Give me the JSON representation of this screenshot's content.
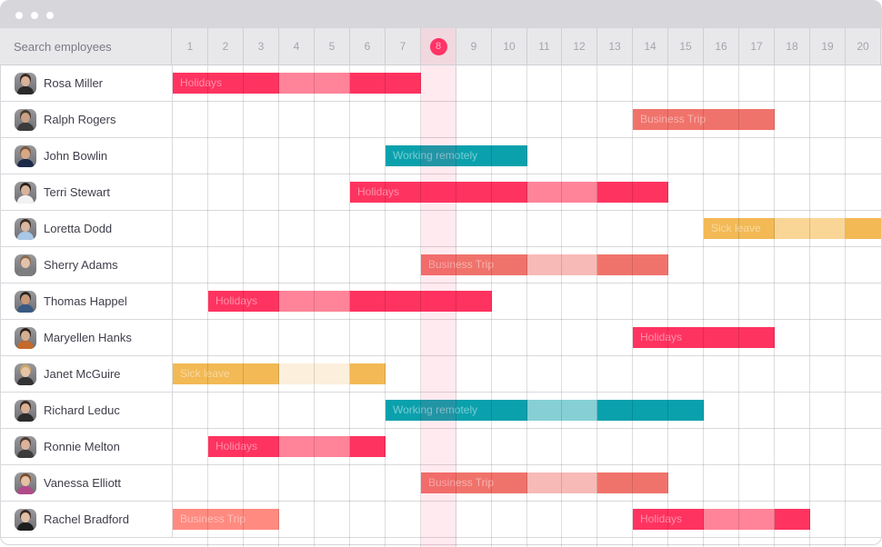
{
  "window": {
    "controls": [
      "dot",
      "dot",
      "dot"
    ]
  },
  "header": {
    "search_placeholder": "Search employees",
    "days": [
      "1",
      "2",
      "3",
      "4",
      "5",
      "6",
      "7",
      "8",
      "9",
      "10",
      "11",
      "12",
      "13",
      "14",
      "15",
      "16",
      "17",
      "18",
      "19",
      "20"
    ],
    "today": "8"
  },
  "colors": {
    "holidays": "#ff3360",
    "holidays_light": "#ff8399",
    "business": "#f0736b",
    "business_light": "#f8bab6",
    "business_salmon": "#ff8a80",
    "remote": "#0aa1ad",
    "remote_light": "#85cfd5",
    "sick": "#f2b955",
    "sick_light": "#f9d596",
    "sick_pale": "#fcefdc",
    "today_accent": "#ff3366"
  },
  "employees": [
    {
      "name": "Rosa Miller",
      "avatar": {
        "hair": "#3b2a22",
        "skin": "#d7b39a",
        "shirt": "#2a2a2a"
      },
      "bars": [
        {
          "label": "Holidays",
          "start": 1,
          "segments": [
            {
              "days": 3,
              "tone": "holidays"
            },
            {
              "days": 2,
              "tone": "holidays_light"
            },
            {
              "days": 2,
              "tone": "holidays"
            }
          ]
        }
      ]
    },
    {
      "name": "Ralph Rogers",
      "avatar": {
        "hair": "#4a3a2e",
        "skin": "#caa088",
        "shirt": "#3b3b3b"
      },
      "bars": [
        {
          "label": "Business Trip",
          "start": 14,
          "segments": [
            {
              "days": 4,
              "tone": "business"
            }
          ]
        }
      ]
    },
    {
      "name": "John Bowlin",
      "avatar": {
        "hair": "#7a5a3e",
        "skin": "#d8a886",
        "shirt": "#1c2a48"
      },
      "bars": [
        {
          "label": "Working remotely",
          "start": 7,
          "segments": [
            {
              "days": 4,
              "tone": "remote"
            }
          ]
        }
      ]
    },
    {
      "name": "Terri Stewart",
      "avatar": {
        "hair": "#2b2019",
        "skin": "#d6b49c",
        "shirt": "#f2f2f2"
      },
      "bars": [
        {
          "label": "Holidays",
          "start": 6,
          "segments": [
            {
              "days": 5,
              "tone": "holidays"
            },
            {
              "days": 2,
              "tone": "holidays_light"
            },
            {
              "days": 2,
              "tone": "holidays"
            }
          ]
        }
      ]
    },
    {
      "name": "Loretta Dodd",
      "avatar": {
        "hair": "#3a2b22",
        "skin": "#d9b7a0",
        "shirt": "#a9c7e6"
      },
      "bars": [
        {
          "label": "Sick leave",
          "start": 16,
          "segments": [
            {
              "days": 2,
              "tone": "sick"
            },
            {
              "days": 2,
              "tone": "sick_light"
            },
            {
              "days": 1,
              "tone": "sick"
            }
          ]
        }
      ]
    },
    {
      "name": "Sherry Adams",
      "avatar": {
        "hair": "#8a6a4e",
        "skin": "#e3c2aa",
        "shirt": "#7d7d80"
      },
      "bars": [
        {
          "label": "Business Trip",
          "start": 8,
          "segments": [
            {
              "days": 3,
              "tone": "business"
            },
            {
              "days": 2,
              "tone": "business_light"
            },
            {
              "days": 2,
              "tone": "business"
            }
          ]
        }
      ]
    },
    {
      "name": "Thomas Happel",
      "avatar": {
        "hair": "#2a2520",
        "skin": "#c99a7a",
        "shirt": "#3a5a82"
      },
      "bars": [
        {
          "label": "Holidays",
          "start": 2,
          "segments": [
            {
              "days": 2,
              "tone": "holidays"
            },
            {
              "days": 2,
              "tone": "holidays_light"
            },
            {
              "days": 4,
              "tone": "holidays"
            }
          ]
        }
      ]
    },
    {
      "name": "Maryellen Hanks",
      "avatar": {
        "hair": "#2a1e18",
        "skin": "#d6ae92",
        "shirt": "#c46a2c"
      },
      "bars": [
        {
          "label": "Holidays",
          "start": 14,
          "segments": [
            {
              "days": 4,
              "tone": "holidays"
            }
          ]
        }
      ]
    },
    {
      "name": "Janet McGuire",
      "avatar": {
        "hair": "#c9a66b",
        "skin": "#e8c4a6",
        "shirt": "#333333"
      },
      "bars": [
        {
          "label": "Sick leave",
          "start": 1,
          "segments": [
            {
              "days": 3,
              "tone": "sick"
            },
            {
              "days": 2,
              "tone": "sick_pale"
            },
            {
              "days": 1,
              "tone": "sick"
            }
          ]
        }
      ]
    },
    {
      "name": "Richard Leduc",
      "avatar": {
        "hair": "#3a2a20",
        "skin": "#d9b196",
        "shirt": "#2c2c2c"
      },
      "bars": [
        {
          "label": "Working remotely",
          "start": 7,
          "segments": [
            {
              "days": 4,
              "tone": "remote"
            },
            {
              "days": 2,
              "tone": "remote_light"
            },
            {
              "days": 3,
              "tone": "remote"
            }
          ]
        }
      ]
    },
    {
      "name": "Ronnie Melton",
      "avatar": {
        "hair": "#4e3a2c",
        "skin": "#dcb39a",
        "shirt": "#3b3b3b"
      },
      "bars": [
        {
          "label": "Holidays",
          "start": 2,
          "segments": [
            {
              "days": 2,
              "tone": "holidays"
            },
            {
              "days": 2,
              "tone": "holidays_light"
            },
            {
              "days": 1,
              "tone": "holidays"
            }
          ]
        }
      ]
    },
    {
      "name": "Vanessa Elliott",
      "avatar": {
        "hair": "#7a4e2e",
        "skin": "#e6c0a4",
        "shirt": "#b04a8a"
      },
      "bars": [
        {
          "label": "Business Trip",
          "start": 8,
          "segments": [
            {
              "days": 3,
              "tone": "business"
            },
            {
              "days": 2,
              "tone": "business_light"
            },
            {
              "days": 2,
              "tone": "business"
            }
          ]
        }
      ]
    },
    {
      "name": "Rachel Bradford",
      "avatar": {
        "hair": "#3a2a22",
        "skin": "#e2c0a8",
        "shirt": "#1e1e1e"
      },
      "bars": [
        {
          "label": "Business Trip",
          "start": 1,
          "segments": [
            {
              "days": 3,
              "tone": "business_salmon"
            }
          ]
        },
        {
          "label": "Holidays",
          "start": 14,
          "segments": [
            {
              "days": 2,
              "tone": "holidays"
            },
            {
              "days": 2,
              "tone": "holidays_light"
            },
            {
              "days": 1,
              "tone": "holidays"
            }
          ]
        }
      ]
    }
  ]
}
